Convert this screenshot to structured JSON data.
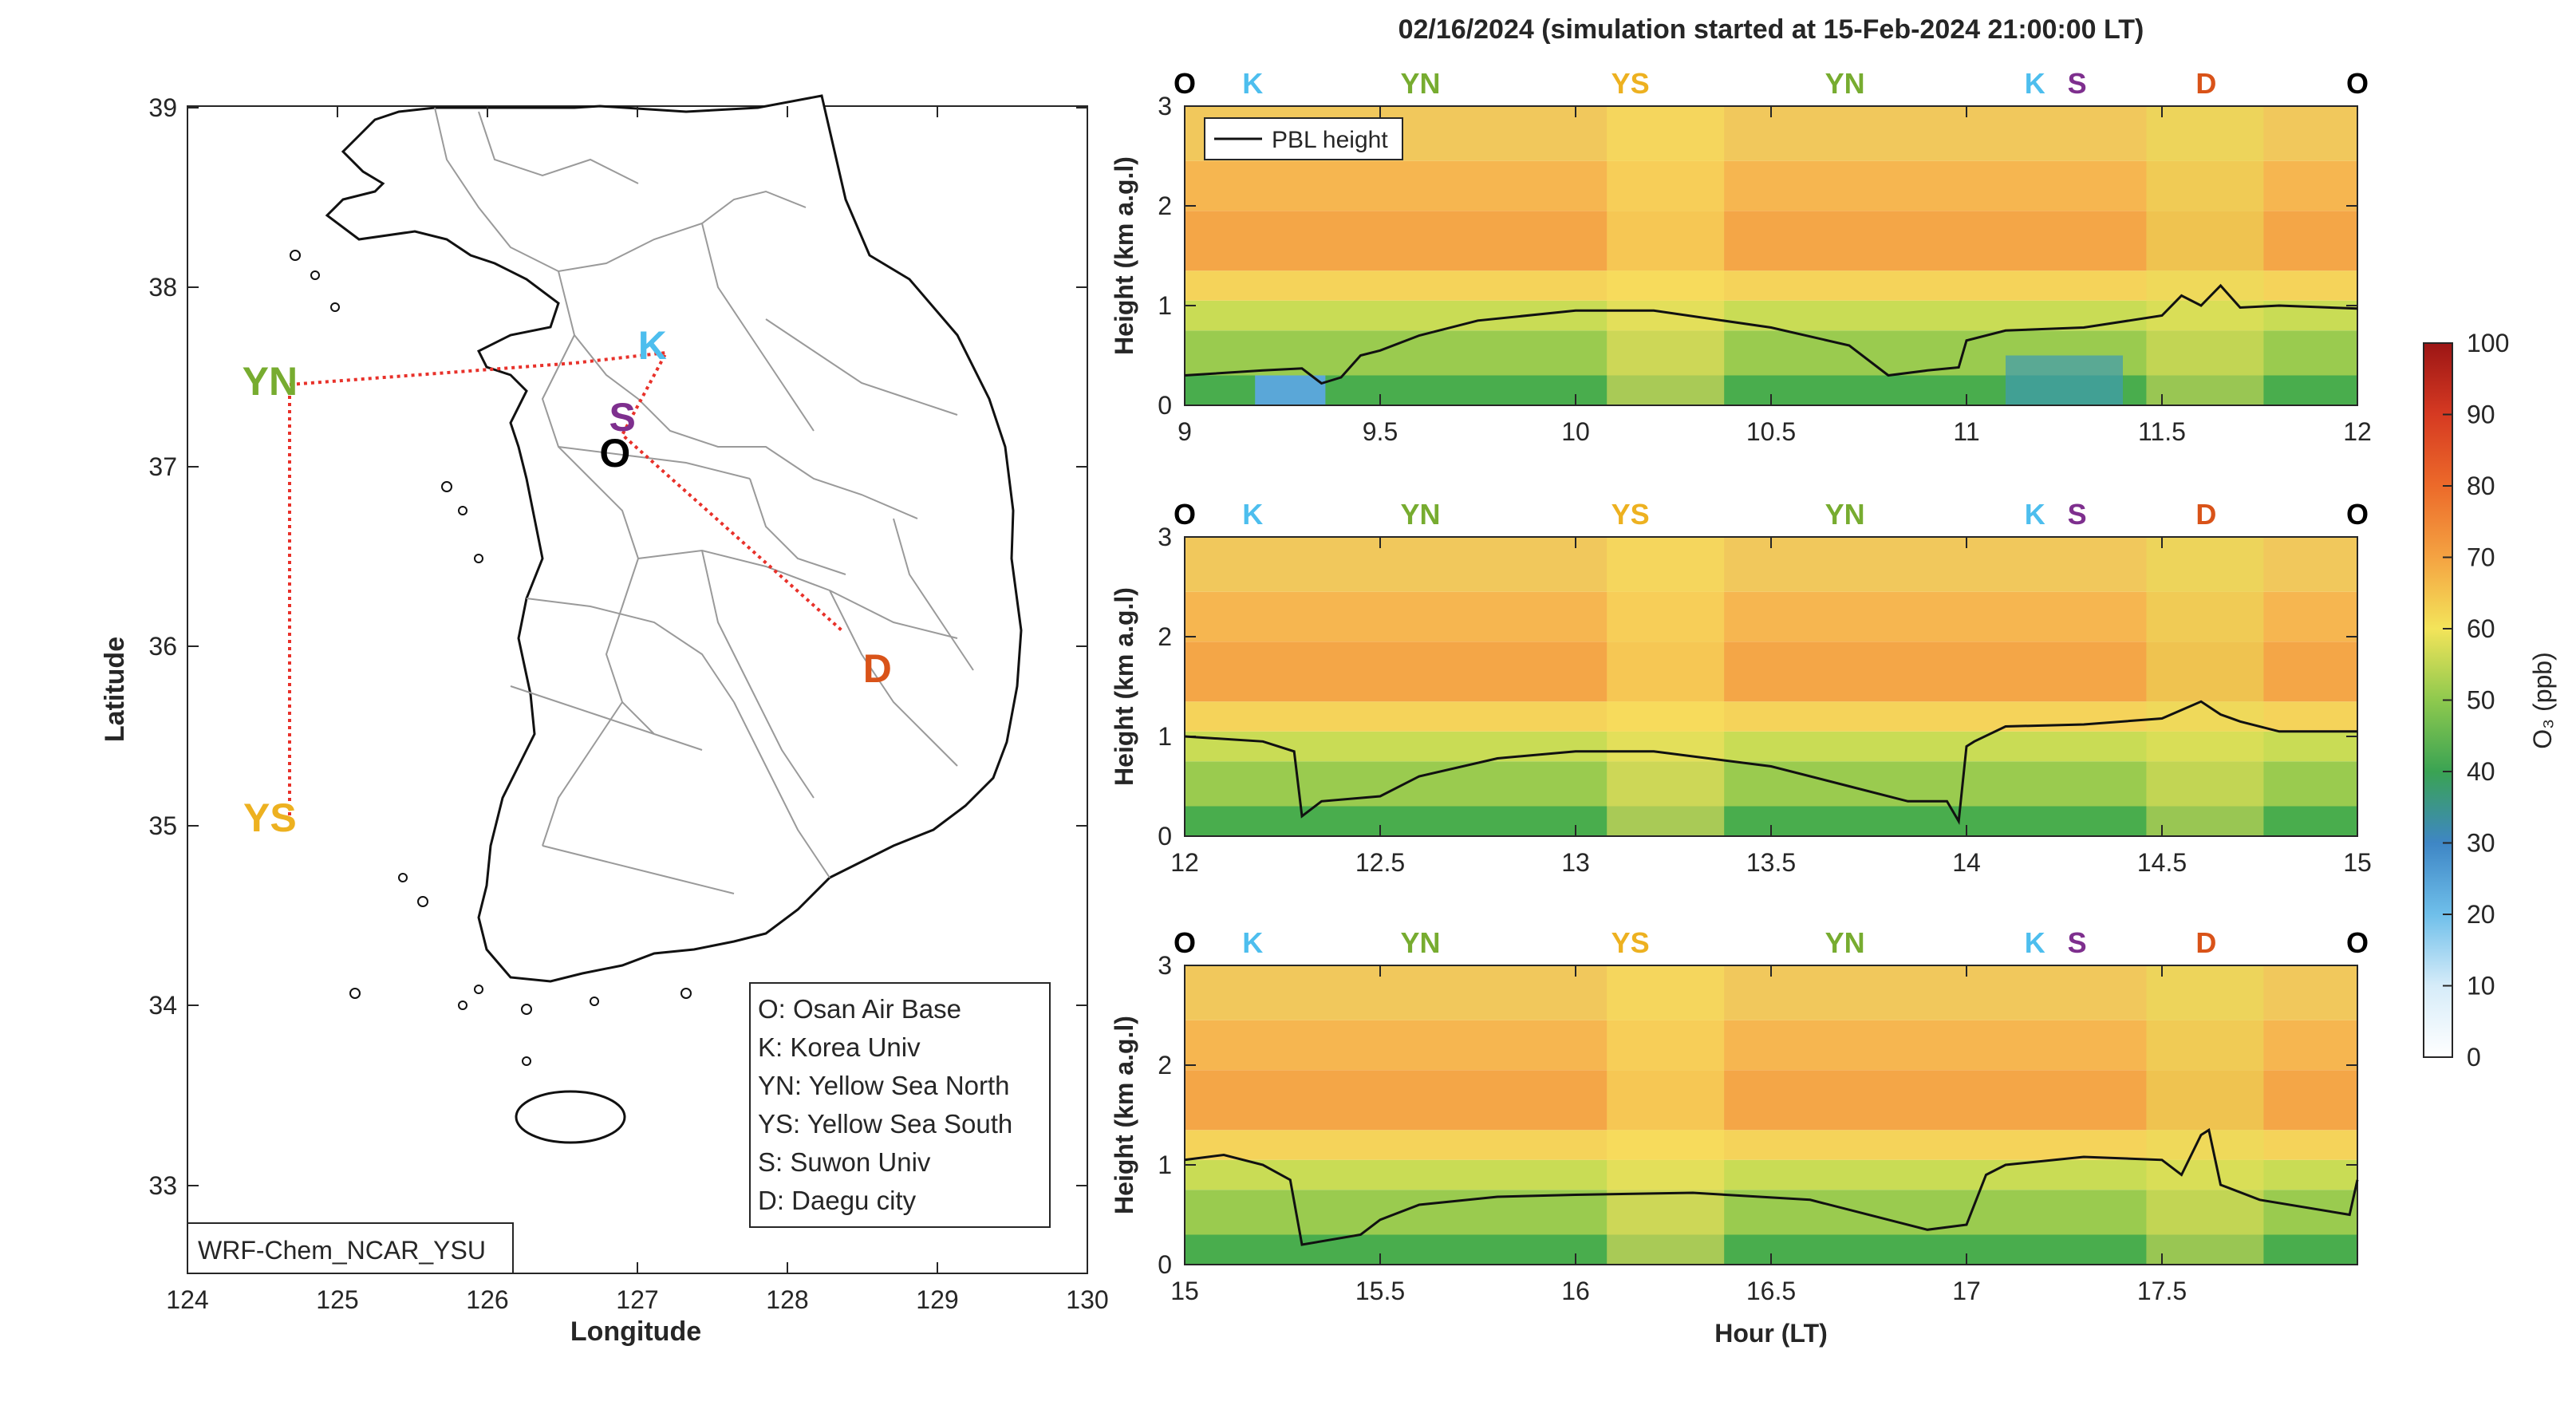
{
  "figure": {
    "title": "02/16/2024 (simulation started at 15-Feb-2024 21:00:00 LT)"
  },
  "map": {
    "xlabel": "Longitude",
    "ylabel": "Latitude",
    "xticks": [
      "124",
      "125",
      "126",
      "127",
      "128",
      "129",
      "130"
    ],
    "yticks": [
      "39",
      "38",
      "37",
      "36",
      "35",
      "34",
      "33"
    ],
    "model_label": "WRF-Chem_NCAR_YSU",
    "sites": [
      {
        "code": "K",
        "color": "#4DBEEE",
        "lon": 127.1,
        "lat": 37.68
      },
      {
        "code": "S",
        "color": "#7E2F8E",
        "lon": 126.9,
        "lat": 37.28
      },
      {
        "code": "O",
        "color": "#000000",
        "lon": 126.85,
        "lat": 37.08
      },
      {
        "code": "YN",
        "color": "#77AC30",
        "lon": 124.55,
        "lat": 37.48
      },
      {
        "code": "YS",
        "color": "#EDB120",
        "lon": 124.55,
        "lat": 35.05
      },
      {
        "code": "D",
        "color": "#D95319",
        "lon": 128.6,
        "lat": 35.88
      }
    ],
    "legend": [
      "O: Osan Air Base",
      "K: Korea Univ",
      "YN: Yellow Sea North",
      "YS: Yellow Sea South",
      "S: Suwon Univ",
      "D: Daegu city"
    ]
  },
  "panels": {
    "ylabel": "Height (km a.g.l)",
    "xlabel": "Hour (LT)",
    "yticks": [
      "0",
      "1",
      "2",
      "3"
    ],
    "legend_label": "PBL height",
    "site_labels": [
      {
        "code": "O",
        "color": "#000000"
      },
      {
        "code": "K",
        "color": "#4DBEEE"
      },
      {
        "code": "YN",
        "color": "#77AC30"
      },
      {
        "code": "YS",
        "color": "#EDB120"
      },
      {
        "code": "YN",
        "color": "#77AC30"
      },
      {
        "code": "K",
        "color": "#4DBEEE"
      },
      {
        "code": "S",
        "color": "#7E2F8E"
      },
      {
        "code": "D",
        "color": "#D95319"
      },
      {
        "code": "O",
        "color": "#000000"
      }
    ],
    "xticks": [
      [
        "9",
        "9.5",
        "10",
        "10.5",
        "11",
        "11.5",
        "12"
      ],
      [
        "12",
        "12.5",
        "13",
        "13.5",
        "14",
        "14.5",
        "15"
      ],
      [
        "15",
        "15.5",
        "16",
        "16.5",
        "17",
        "17.5"
      ]
    ]
  },
  "colorbar": {
    "label": "O₃ (ppb)",
    "ticks": [
      "100",
      "90",
      "80",
      "70",
      "60",
      "50",
      "40",
      "30",
      "20",
      "10",
      "0"
    ]
  },
  "chart_data": [
    {
      "type": "line",
      "title": "",
      "xlabel": "",
      "ylabel": "Height (km a.g.l)",
      "xlim": [
        9,
        12
      ],
      "ylim": [
        0,
        3
      ],
      "series": [
        {
          "name": "PBL height",
          "x": [
            9.0,
            9.2,
            9.3,
            9.35,
            9.4,
            9.45,
            9.5,
            9.6,
            9.75,
            10.0,
            10.2,
            10.5,
            10.7,
            10.8,
            10.9,
            10.98,
            11.0,
            11.1,
            11.3,
            11.5,
            11.55,
            11.6,
            11.65,
            11.7,
            11.8,
            12.0
          ],
          "values": [
            0.3,
            0.35,
            0.37,
            0.22,
            0.28,
            0.5,
            0.55,
            0.7,
            0.85,
            0.95,
            0.95,
            0.78,
            0.6,
            0.3,
            0.35,
            0.38,
            0.65,
            0.75,
            0.78,
            0.9,
            1.1,
            1.0,
            1.2,
            0.98,
            1.0,
            0.97
          ]
        }
      ]
    },
    {
      "type": "line",
      "title": "",
      "xlabel": "",
      "ylabel": "Height (km a.g.l)",
      "xlim": [
        12,
        15
      ],
      "ylim": [
        0,
        3
      ],
      "series": [
        {
          "name": "PBL height",
          "x": [
            12.0,
            12.2,
            12.28,
            12.3,
            12.35,
            12.5,
            12.6,
            12.8,
            13.0,
            13.2,
            13.5,
            13.7,
            13.85,
            13.95,
            13.98,
            14.0,
            14.02,
            14.1,
            14.3,
            14.5,
            14.6,
            14.65,
            14.7,
            14.8,
            15.0
          ],
          "values": [
            1.0,
            0.95,
            0.85,
            0.2,
            0.35,
            0.4,
            0.6,
            0.78,
            0.85,
            0.85,
            0.7,
            0.5,
            0.35,
            0.35,
            0.15,
            0.9,
            0.95,
            1.1,
            1.12,
            1.18,
            1.35,
            1.22,
            1.15,
            1.05,
            1.05
          ]
        }
      ]
    },
    {
      "type": "line",
      "title": "",
      "xlabel": "Hour (LT)",
      "ylabel": "Height (km a.g.l)",
      "xlim": [
        15,
        18
      ],
      "ylim": [
        0,
        3
      ],
      "series": [
        {
          "name": "PBL height",
          "x": [
            15.0,
            15.1,
            15.2,
            15.27,
            15.3,
            15.45,
            15.5,
            15.6,
            15.8,
            16.0,
            16.3,
            16.6,
            16.8,
            16.9,
            17.0,
            17.05,
            17.1,
            17.3,
            17.5,
            17.55,
            17.6,
            17.62,
            17.65,
            17.75,
            17.98,
            18.0
          ],
          "values": [
            1.05,
            1.1,
            1.0,
            0.85,
            0.2,
            0.3,
            0.45,
            0.6,
            0.68,
            0.7,
            0.72,
            0.65,
            0.45,
            0.35,
            0.4,
            0.9,
            1.0,
            1.08,
            1.05,
            0.9,
            1.3,
            1.35,
            0.8,
            0.65,
            0.5,
            0.85
          ]
        }
      ]
    }
  ]
}
